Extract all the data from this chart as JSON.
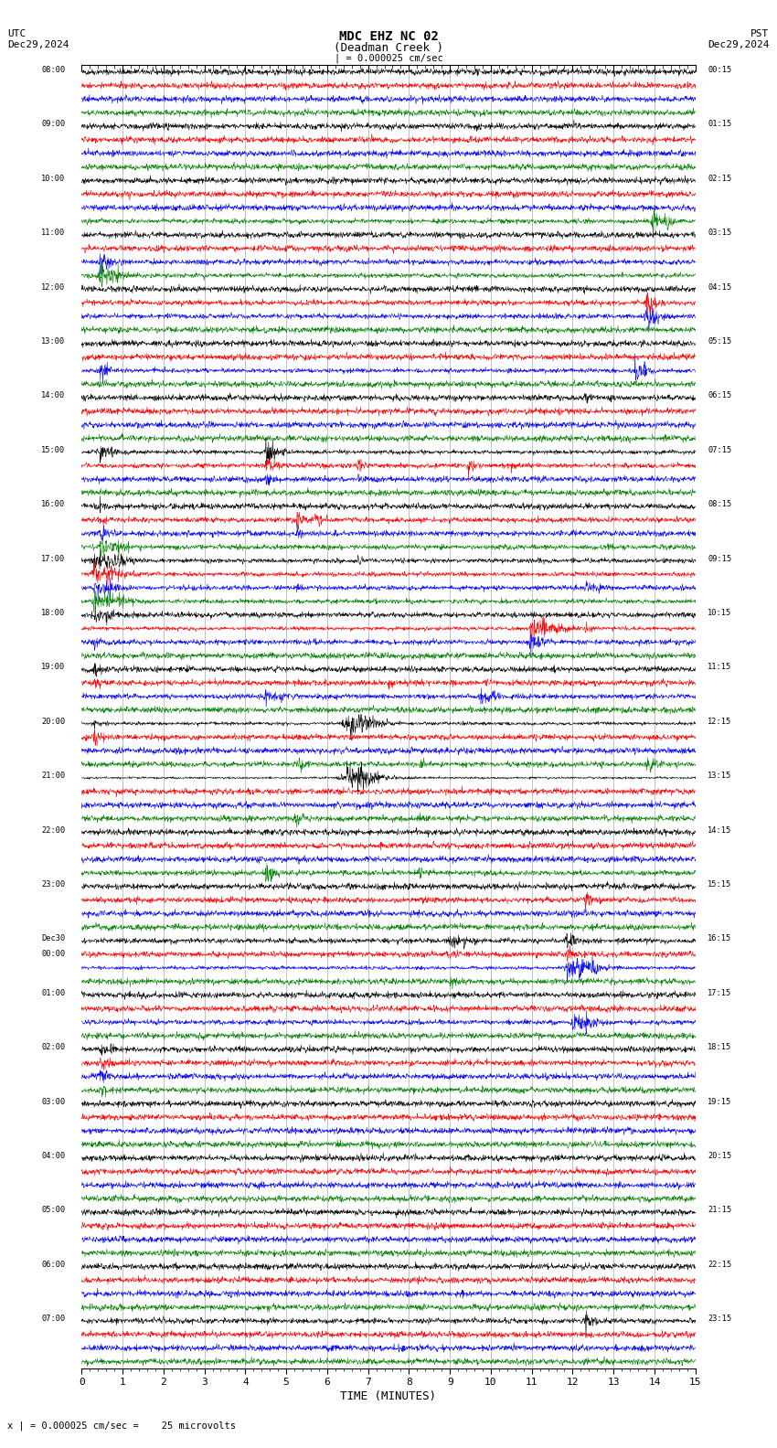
{
  "title_line1": "MDC EHZ NC 02",
  "title_line2": "(Deadman Creek )",
  "scale_label": "| = 0.000025 cm/sec",
  "utc_label": "UTC",
  "utc_date": "Dec29,2024",
  "pst_label": "PST",
  "pst_date": "Dec29,2024",
  "xlabel": "TIME (MINUTES)",
  "footer": "x | = 0.000025 cm/sec =    25 microvolts",
  "xlabel_ticks": [
    0,
    1,
    2,
    3,
    4,
    5,
    6,
    7,
    8,
    9,
    10,
    11,
    12,
    13,
    14,
    15
  ],
  "left_labels": [
    "08:00",
    "09:00",
    "10:00",
    "11:00",
    "12:00",
    "13:00",
    "14:00",
    "15:00",
    "16:00",
    "17:00",
    "18:00",
    "19:00",
    "20:00",
    "21:00",
    "22:00",
    "23:00",
    "Dec30\n00:00",
    "01:00",
    "02:00",
    "03:00",
    "04:00",
    "05:00",
    "06:00",
    "07:00"
  ],
  "right_labels": [
    "00:15",
    "01:15",
    "02:15",
    "03:15",
    "04:15",
    "05:15",
    "06:15",
    "07:15",
    "08:15",
    "09:15",
    "10:15",
    "11:15",
    "12:15",
    "13:15",
    "14:15",
    "15:15",
    "16:15",
    "17:15",
    "18:15",
    "19:15",
    "20:15",
    "21:15",
    "22:15",
    "23:15"
  ],
  "colors": [
    "black",
    "red",
    "blue",
    "green"
  ],
  "n_rows": 24,
  "traces_per_row": 4,
  "bg_color": "#ffffff",
  "trace_color_order": [
    "black",
    "red",
    "blue",
    "green"
  ],
  "seed": 42
}
